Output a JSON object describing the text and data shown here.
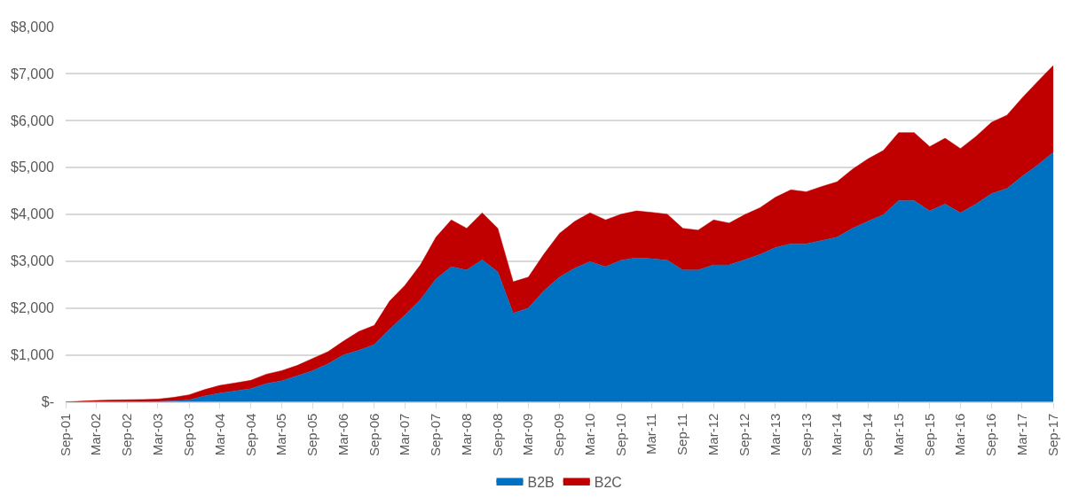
{
  "chart_data": {
    "type": "area",
    "stacked": true,
    "grid": "y",
    "legend": "bottom",
    "x": [
      "2001-09",
      "2001-12",
      "2002-03",
      "2002-06",
      "2002-09",
      "2002-12",
      "2003-03",
      "2003-06",
      "2003-09",
      "2003-12",
      "2004-03",
      "2004-06",
      "2004-09",
      "2004-12",
      "2005-03",
      "2005-06",
      "2005-09",
      "2005-12",
      "2006-03",
      "2006-06",
      "2006-09",
      "2006-12",
      "2007-03",
      "2007-06",
      "2007-09",
      "2007-12",
      "2008-03",
      "2008-06",
      "2008-09",
      "2008-12",
      "2009-03",
      "2009-06",
      "2009-09",
      "2009-12",
      "2010-03",
      "2010-06",
      "2010-09",
      "2010-12",
      "2011-03",
      "2011-06",
      "2011-09",
      "2011-12",
      "2012-03",
      "2012-06",
      "2012-09",
      "2012-12",
      "2013-03",
      "2013-06",
      "2013-09",
      "2013-12",
      "2014-03",
      "2014-06",
      "2014-09",
      "2014-12",
      "2015-03",
      "2015-06",
      "2015-09",
      "2015-12",
      "2016-03",
      "2016-06",
      "2016-09",
      "2016-12",
      "2017-03",
      "2017-06",
      "2017-09"
    ],
    "series": [
      {
        "name": "B2B",
        "color": "#0070c0",
        "values": [
          0,
          0,
          5,
          5,
          5,
          5,
          10,
          20,
          40,
          125,
          185,
          235,
          280,
          390,
          445,
          555,
          665,
          810,
          1000,
          1100,
          1220,
          1550,
          1850,
          2180,
          2620,
          2880,
          2810,
          3030,
          2770,
          1890,
          2000,
          2370,
          2660,
          2850,
          2990,
          2880,
          3020,
          3070,
          3050,
          3020,
          2810,
          2810,
          2920,
          2920,
          3030,
          3140,
          3290,
          3370,
          3370,
          3440,
          3510,
          3700,
          3850,
          3990,
          4290,
          4290,
          4070,
          4220,
          4030,
          4220,
          4440,
          4550,
          4810,
          5050,
          5320
        ]
      },
      {
        "name": "B2C",
        "color": "#c00000",
        "values": [
          0,
          15,
          25,
          35,
          40,
          45,
          50,
          75,
          110,
          135,
          165,
          170,
          180,
          200,
          220,
          220,
          260,
          260,
          290,
          400,
          410,
          600,
          630,
          740,
          890,
          1000,
          890,
          1000,
          930,
          670,
          660,
          780,
          930,
          1000,
          1040,
          1000,
          980,
          1000,
          990,
          980,
          890,
          850,
          960,
          890,
          960,
          1000,
          1070,
          1150,
          1110,
          1150,
          1180,
          1260,
          1330,
          1370,
          1450,
          1450,
          1370,
          1400,
          1370,
          1440,
          1520,
          1560,
          1670,
          1780,
          1850
        ]
      }
    ],
    "xlim": [
      "2001-09",
      "2017-09"
    ],
    "xticks": [
      {
        "value": "2001-09",
        "label": "Sep-01"
      },
      {
        "value": "2002-03",
        "label": "Mar-02"
      },
      {
        "value": "2002-09",
        "label": "Sep-02"
      },
      {
        "value": "2003-03",
        "label": "Mar-03"
      },
      {
        "value": "2003-09",
        "label": "Sep-03"
      },
      {
        "value": "2004-03",
        "label": "Mar-04"
      },
      {
        "value": "2004-09",
        "label": "Sep-04"
      },
      {
        "value": "2005-03",
        "label": "Mar-05"
      },
      {
        "value": "2005-09",
        "label": "Sep-05"
      },
      {
        "value": "2006-03",
        "label": "Mar-06"
      },
      {
        "value": "2006-09",
        "label": "Sep-06"
      },
      {
        "value": "2007-03",
        "label": "Mar-07"
      },
      {
        "value": "2007-09",
        "label": "Sep-07"
      },
      {
        "value": "2008-03",
        "label": "Mar-08"
      },
      {
        "value": "2008-09",
        "label": "Sep-08"
      },
      {
        "value": "2009-03",
        "label": "Mar-09"
      },
      {
        "value": "2009-09",
        "label": "Sep-09"
      },
      {
        "value": "2010-03",
        "label": "Mar-10"
      },
      {
        "value": "2010-09",
        "label": "Sep-10"
      },
      {
        "value": "2011-03",
        "label": "Mar-11"
      },
      {
        "value": "2011-09",
        "label": "Sep-11"
      },
      {
        "value": "2012-03",
        "label": "Mar-12"
      },
      {
        "value": "2012-09",
        "label": "Sep-12"
      },
      {
        "value": "2013-03",
        "label": "Mar-13"
      },
      {
        "value": "2013-09",
        "label": "Sep-13"
      },
      {
        "value": "2014-03",
        "label": "Mar-14"
      },
      {
        "value": "2014-09",
        "label": "Sep-14"
      },
      {
        "value": "2015-03",
        "label": "Mar-15"
      },
      {
        "value": "2015-09",
        "label": "Sep-15"
      },
      {
        "value": "2016-03",
        "label": "Mar-16"
      },
      {
        "value": "2016-09",
        "label": "Sep-16"
      },
      {
        "value": "2017-03",
        "label": "Mar-17"
      },
      {
        "value": "2017-09",
        "label": "Sep-17"
      }
    ],
    "ylim": [
      0,
      8000
    ],
    "yticks": [
      {
        "value": 0,
        "label": "$-"
      },
      {
        "value": 1000,
        "label": "$1,000"
      },
      {
        "value": 2000,
        "label": "$2,000"
      },
      {
        "value": 3000,
        "label": "$3,000"
      },
      {
        "value": 4000,
        "label": "$4,000"
      },
      {
        "value": 5000,
        "label": "$5,000"
      },
      {
        "value": 6000,
        "label": "$6,000"
      },
      {
        "value": 7000,
        "label": "$7,000"
      },
      {
        "value": 8000,
        "label": "$8,000"
      }
    ]
  }
}
